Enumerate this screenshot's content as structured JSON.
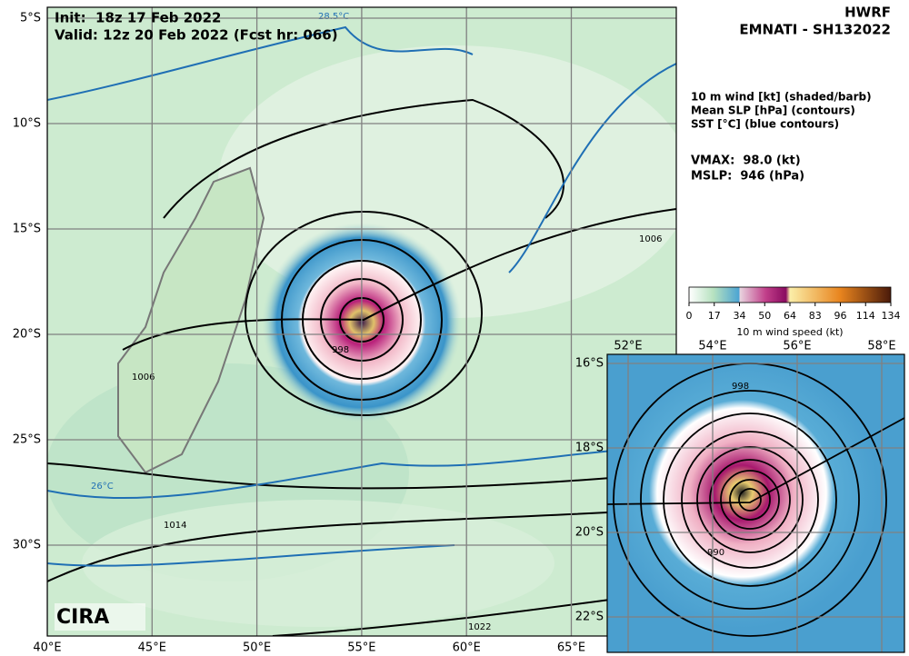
{
  "header": {
    "init": "Init:  18z 17 Feb 2022",
    "valid": "Valid: 12z 20 Feb 2022 (Fcst hr: 066)",
    "model": "HWRF",
    "storm": "EMNATI - SH132022"
  },
  "legend": [
    "10 m wind [kt] (shaded/barb)",
    "Mean SLP [hPa] (contours)",
    "SST [°C] (blue contours)"
  ],
  "stats": {
    "vmax": "VMAX:  98.0 (kt)",
    "mslp": "MSLP:  946 (hPa)"
  },
  "colorbar": {
    "label": "10 m wind speed (kt)",
    "ticks": [
      0,
      17,
      34,
      50,
      64,
      83,
      96,
      114,
      134
    ]
  },
  "main_axes": {
    "lat": [
      "5°S",
      "10°S",
      "15°S",
      "20°S",
      "25°S",
      "30°S"
    ],
    "lon": [
      "40°E",
      "45°E",
      "50°E",
      "55°E",
      "60°E",
      "65°E"
    ]
  },
  "inset_axes": {
    "lat": [
      "16°S",
      "18°S",
      "20°S",
      "22°S"
    ],
    "lon": [
      "52°E",
      "54°E",
      "56°E",
      "58°E"
    ]
  },
  "contour_labels": [
    "28.5°C",
    "26°C",
    "998",
    "1006",
    "1014",
    "1022",
    "990"
  ],
  "logo": "CIRA"
}
